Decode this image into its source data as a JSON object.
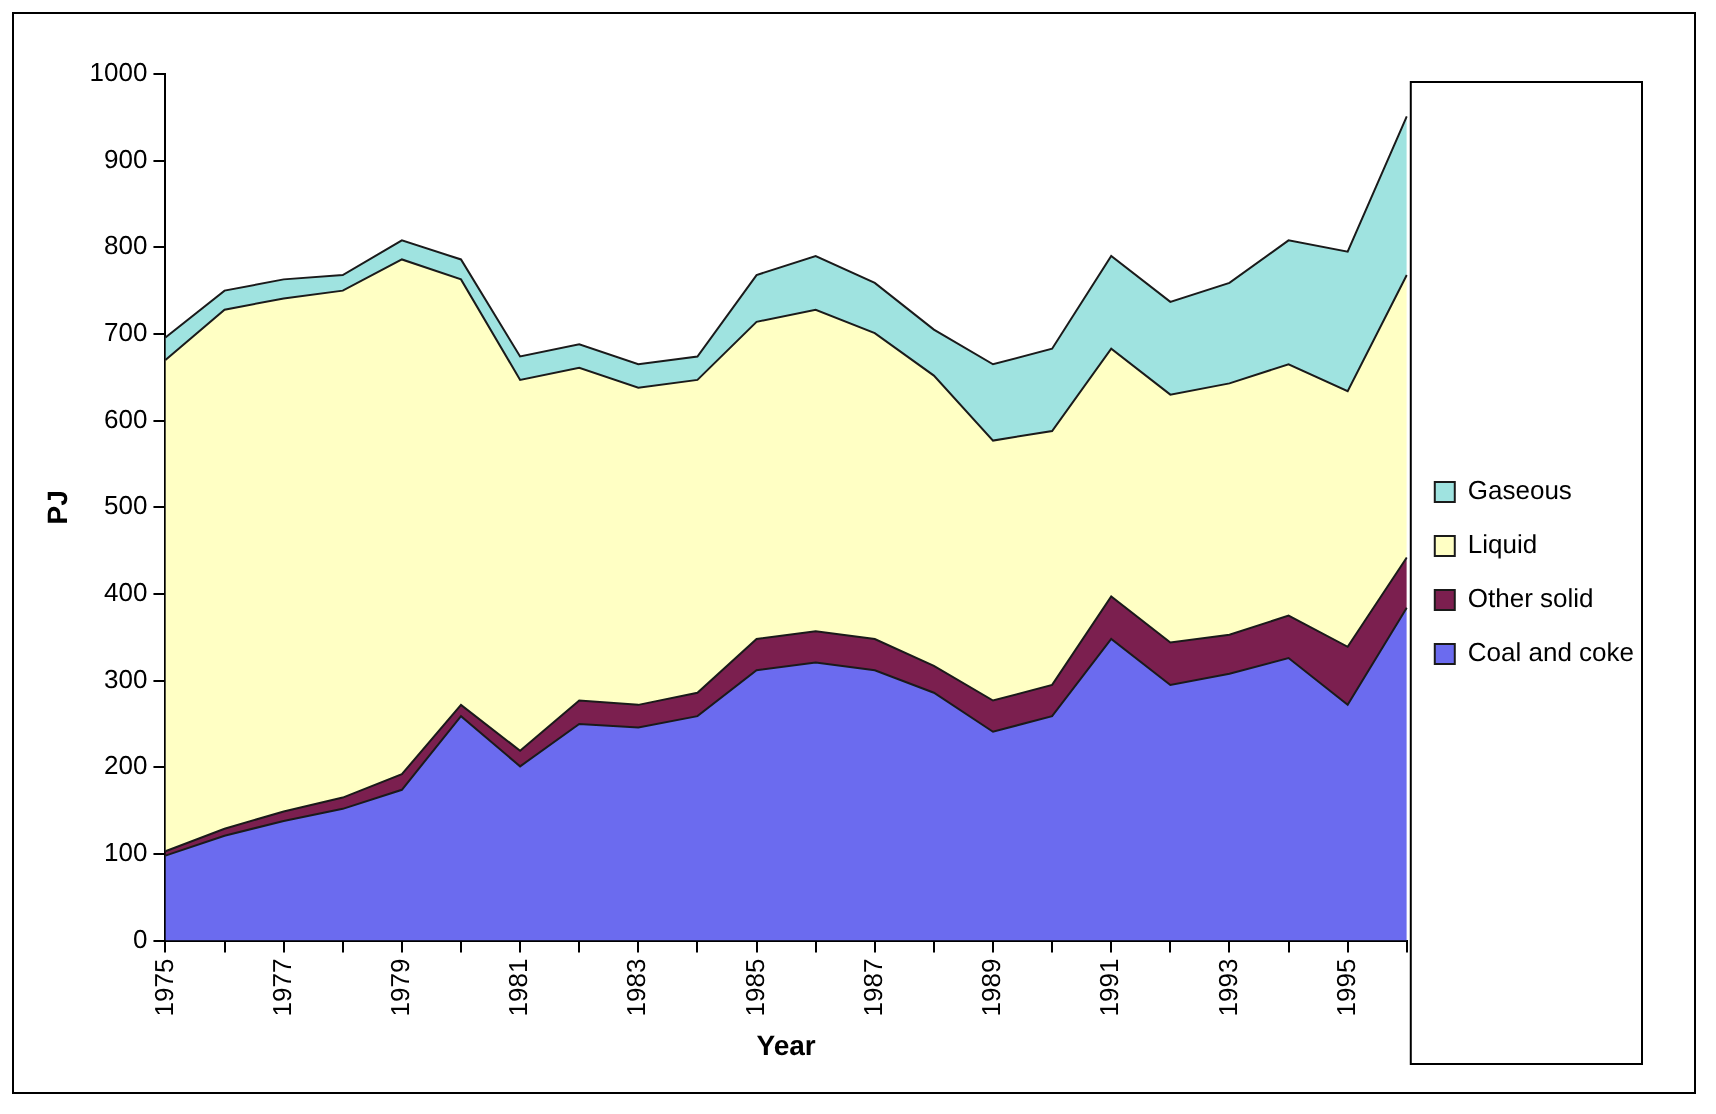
{
  "chart_data": {
    "type": "area",
    "xlabel": "Year",
    "ylabel": "PJ",
    "stacked": true,
    "categories": [
      "1975",
      null,
      "1977",
      null,
      "1979",
      null,
      "1981",
      null,
      "1983",
      null,
      "1985",
      null,
      "1987",
      null,
      "1989",
      null,
      "1991",
      null,
      "1993",
      null,
      "1995",
      null
    ],
    "series": [
      {
        "name": "Coal and coke",
        "color": "#6b6bef",
        "values": [
          98,
          121,
          138,
          152,
          174,
          259,
          201,
          250,
          246,
          259,
          312,
          321,
          312,
          286,
          241,
          259,
          348,
          295,
          308,
          326,
          272,
          384
        ]
      },
      {
        "name": "Other solid",
        "color": "#7b1f4f",
        "values": [
          5,
          8,
          11,
          13,
          18,
          13,
          18,
          27,
          26,
          27,
          36,
          36,
          36,
          31,
          36,
          36,
          49,
          49,
          45,
          49,
          67,
          58
        ]
      },
      {
        "name": "Liquid",
        "color": "#ffffc4",
        "values": [
          567,
          599,
          592,
          585,
          594,
          491,
          428,
          384,
          366,
          361,
          366,
          371,
          353,
          335,
          300,
          293,
          286,
          286,
          290,
          290,
          295,
          326
        ]
      },
      {
        "name": "Gaseous",
        "color": "#9fe3e0",
        "values": [
          26,
          22,
          22,
          18,
          22,
          23,
          27,
          27,
          27,
          27,
          54,
          62,
          58,
          53,
          88,
          95,
          107,
          107,
          116,
          143,
          161,
          183
        ]
      }
    ],
    "ylim": [
      0,
      1000
    ],
    "yticks": [
      0,
      100,
      200,
      300,
      400,
      500,
      600,
      700,
      800,
      900,
      1000
    ],
    "grid": false,
    "legend": "right"
  }
}
